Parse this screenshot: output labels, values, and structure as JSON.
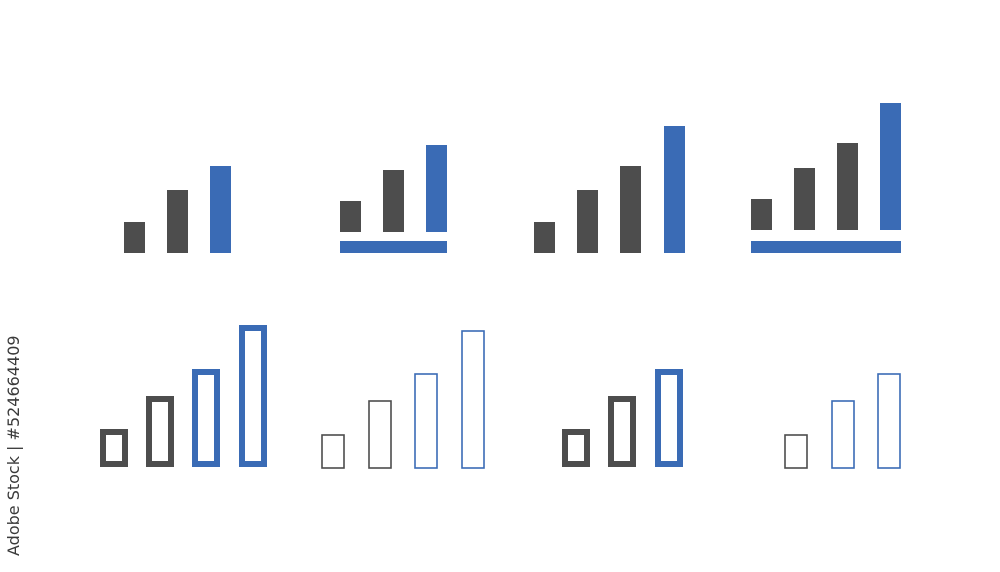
{
  "watermark": "Adobe Stock | #524664409",
  "colors": {
    "gray": "#4d4d4d",
    "blue": "#3a6bb5",
    "background": "#ffffff"
  },
  "icons": [
    {
      "name": "signal-bars-3-solid"
    },
    {
      "name": "signal-bars-3-solid-with-base"
    },
    {
      "name": "signal-bars-4-solid"
    },
    {
      "name": "signal-bars-4-solid-with-base"
    },
    {
      "name": "signal-bars-4-outline-bold"
    },
    {
      "name": "signal-bars-4-outline-thin"
    },
    {
      "name": "signal-bars-3-outline-bold"
    },
    {
      "name": "signal-bars-3-outline-thin"
    }
  ]
}
